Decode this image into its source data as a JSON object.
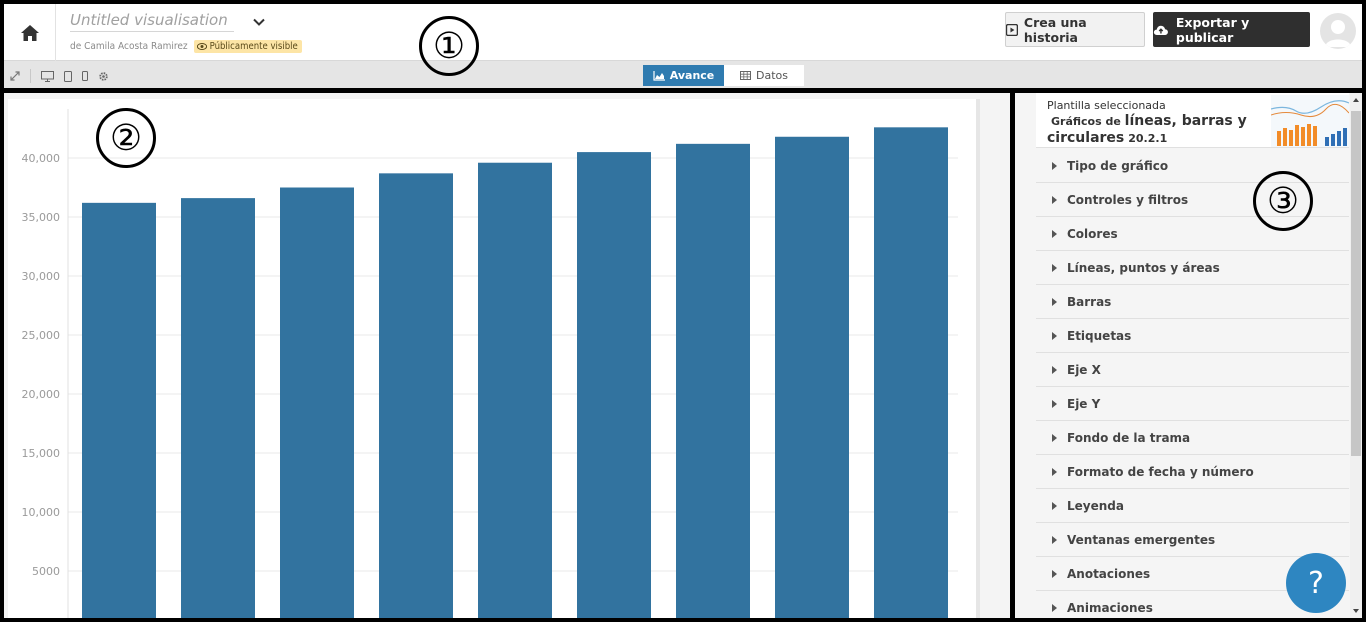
{
  "header": {
    "title": "Untitled visualisation",
    "byline": "de Camila Acosta Ramirez",
    "visibility": "Públicamente visible",
    "story_button": "Crea una historia",
    "export_button": "Exportar y publicar"
  },
  "tabs": [
    {
      "label": "Avance",
      "icon": "chart-area-icon",
      "active": true
    },
    {
      "label": "Datos",
      "icon": "table-icon",
      "active": false
    }
  ],
  "annotations": [
    "①",
    "②",
    "③"
  ],
  "sidebar": {
    "template_label": "Plantilla seleccionada",
    "template_prefix": "Gráficos de",
    "template_name_1": "líneas, barras y",
    "template_name_2": "circulares",
    "template_version": "20.2.1",
    "items": [
      {
        "label": "Tipo de gráfico"
      },
      {
        "label": "Controles y filtros"
      },
      {
        "label": "Colores"
      },
      {
        "label": "Líneas, puntos y áreas"
      },
      {
        "label": "Barras"
      },
      {
        "label": "Etiquetas"
      },
      {
        "label": "Eje X"
      },
      {
        "label": "Eje Y"
      },
      {
        "label": "Fondo de la trama"
      },
      {
        "label": "Formato de fecha y número"
      },
      {
        "label": "Leyenda"
      },
      {
        "label": "Ventanas emergentes"
      },
      {
        "label": "Anotaciones"
      },
      {
        "label": "Animaciones"
      }
    ]
  },
  "help": "?",
  "colors": {
    "bar": "#32739f",
    "accent": "#2f7bb0",
    "help": "#2e86c1",
    "badge": "#fde5a6"
  },
  "chart_data": {
    "type": "bar",
    "values": [
      36200,
      36600,
      37500,
      38700,
      39600,
      40500,
      41200,
      41800,
      42600
    ],
    "ylim": [
      0,
      44000
    ],
    "yticks": [
      5000,
      10000,
      15000,
      20000,
      25000,
      30000,
      35000,
      40000
    ],
    "ytick_labels": [
      "5000",
      "10,000",
      "15,000",
      "20,000",
      "25,000",
      "30,000",
      "35,000",
      "40,000"
    ],
    "grid": true
  }
}
